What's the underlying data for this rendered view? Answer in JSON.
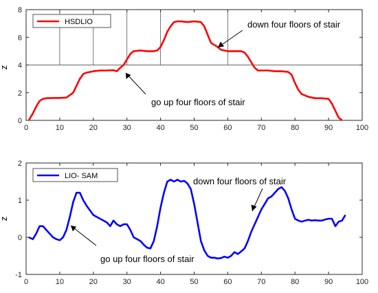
{
  "chart_data": [
    {
      "type": "line",
      "ylabel": "z",
      "xlim": [
        0,
        100
      ],
      "ylim": [
        0,
        8
      ],
      "xticks": [
        0,
        10,
        20,
        30,
        40,
        50,
        60,
        70,
        80,
        90,
        100
      ],
      "yticks": [
        0,
        2,
        4,
        6,
        8
      ],
      "legend_position": "top-left",
      "guide_lines": {
        "horizontal_y": 4,
        "vertical_x": [
          10,
          20,
          30,
          40,
          60
        ]
      },
      "series": [
        {
          "name": "HSDLIO",
          "color": "#ff0000",
          "x": [
            0.8,
            2,
            3,
            4,
            5,
            6,
            8,
            10,
            12,
            14,
            15,
            16,
            17,
            18,
            20,
            22,
            24,
            26,
            27,
            28,
            29,
            30,
            31,
            32,
            34,
            36,
            38,
            39,
            40,
            41,
            42,
            43,
            44,
            45,
            46,
            48,
            50,
            52,
            53,
            54,
            55,
            56,
            57,
            58,
            60,
            62,
            64,
            65,
            66,
            67,
            68,
            69,
            70,
            72,
            74,
            76,
            78,
            79,
            80,
            81,
            82,
            84,
            86,
            88,
            90,
            91,
            92,
            93,
            94
          ],
          "y": [
            0.0,
            0.5,
            1.0,
            1.4,
            1.55,
            1.6,
            1.62,
            1.62,
            1.65,
            2.0,
            2.5,
            3.0,
            3.35,
            3.45,
            3.55,
            3.6,
            3.6,
            3.62,
            3.55,
            3.8,
            4.0,
            4.4,
            4.8,
            5.0,
            5.05,
            5.0,
            5.0,
            5.05,
            5.3,
            5.8,
            6.4,
            6.8,
            7.1,
            7.15,
            7.15,
            7.1,
            7.15,
            7.1,
            6.8,
            6.2,
            5.6,
            5.45,
            5.3,
            5.1,
            5.0,
            5.0,
            5.0,
            4.9,
            4.6,
            4.2,
            3.8,
            3.6,
            3.6,
            3.6,
            3.55,
            3.55,
            3.5,
            3.3,
            2.7,
            2.2,
            1.9,
            1.7,
            1.6,
            1.6,
            1.55,
            1.2,
            0.7,
            0.2,
            0.0
          ]
        }
      ],
      "annotations": [
        {
          "text": "go up four floors of stair",
          "x": 29,
          "y": 4.05
        },
        {
          "text": "down four floors of stair",
          "x": 56,
          "y": 5.1
        }
      ]
    },
    {
      "type": "line",
      "ylabel": "z",
      "xlim": [
        0,
        100
      ],
      "ylim": [
        -1,
        2
      ],
      "xticks": [
        0,
        10,
        20,
        30,
        40,
        50,
        60,
        70,
        80,
        90,
        100
      ],
      "yticks": [
        -1,
        0,
        1,
        2
      ],
      "legend_position": "top-left",
      "series": [
        {
          "name": "LIO- SAM",
          "color": "#0000ff",
          "x": [
            0.8,
            2,
            3,
            4,
            5,
            6,
            7,
            8,
            9,
            10,
            11,
            12,
            13,
            14,
            15,
            16,
            17,
            18,
            20,
            22,
            24,
            25,
            26,
            27,
            28,
            29,
            30,
            31,
            32,
            33,
            34,
            35,
            36,
            37,
            38,
            39,
            40,
            41,
            42,
            43,
            44,
            45,
            46,
            47,
            48,
            49,
            50,
            51,
            52,
            53,
            54,
            55,
            56,
            57,
            58,
            59,
            60,
            61,
            62,
            63,
            64,
            65,
            66,
            67,
            68,
            69,
            70,
            71,
            72,
            73,
            74,
            75,
            76,
            77,
            78,
            79,
            80,
            81,
            82,
            83,
            84,
            85,
            86,
            87,
            88,
            89,
            90,
            91,
            92,
            93,
            94,
            95
          ],
          "y": [
            0.0,
            -0.05,
            0.1,
            0.3,
            0.3,
            0.2,
            0.1,
            0.0,
            -0.05,
            -0.08,
            0.0,
            0.2,
            0.55,
            0.95,
            1.2,
            1.2,
            1.0,
            0.85,
            0.6,
            0.5,
            0.4,
            0.3,
            0.45,
            0.35,
            0.3,
            0.35,
            0.35,
            0.2,
            0.0,
            -0.05,
            -0.1,
            -0.2,
            -0.28,
            -0.3,
            -0.1,
            0.3,
            0.8,
            1.2,
            1.5,
            1.55,
            1.5,
            1.55,
            1.5,
            1.52,
            1.45,
            1.3,
            0.9,
            0.4,
            -0.1,
            -0.35,
            -0.5,
            -0.55,
            -0.55,
            -0.57,
            -0.56,
            -0.52,
            -0.55,
            -0.5,
            -0.4,
            -0.45,
            -0.38,
            -0.3,
            -0.1,
            0.15,
            0.35,
            0.55,
            0.75,
            0.9,
            1.05,
            1.1,
            1.2,
            1.3,
            1.35,
            1.25,
            1.05,
            0.75,
            0.5,
            0.45,
            0.42,
            0.45,
            0.47,
            0.45,
            0.46,
            0.45,
            0.45,
            0.48,
            0.5,
            0.5,
            0.3,
            0.42,
            0.45,
            0.6
          ]
        }
      ],
      "annotations": [
        {
          "text": "go up four floors of stair",
          "x": 12.5,
          "y": 0.3
        },
        {
          "text": "down four floors of stair",
          "x": 68,
          "y": 0.55
        }
      ]
    }
  ]
}
